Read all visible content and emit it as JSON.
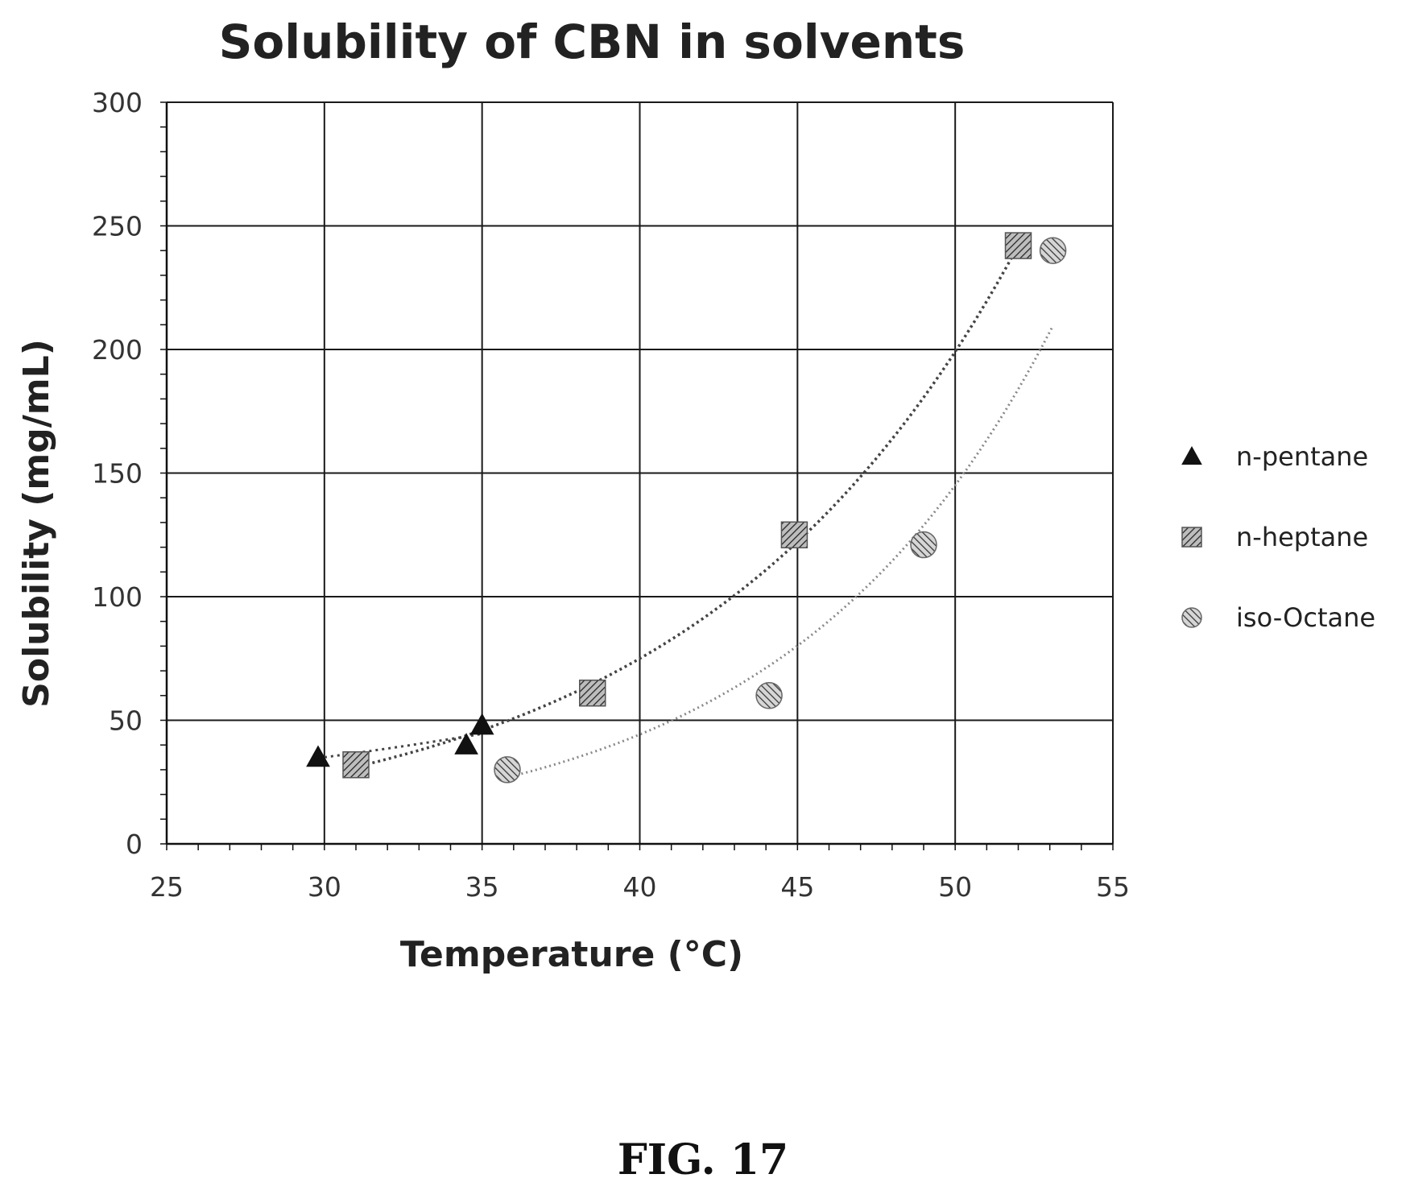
{
  "figure_label": "FIG. 17",
  "chart_data": {
    "type": "scatter",
    "title": "Solubility of CBN in solvents",
    "xlabel": "Temperature (°C)",
    "ylabel": "Solubility (mg/mL)",
    "xlim": [
      25,
      55
    ],
    "ylim": [
      0,
      300
    ],
    "xticks": [
      25,
      30,
      35,
      40,
      45,
      50,
      55
    ],
    "yticks": [
      0,
      50,
      100,
      150,
      200,
      250,
      300
    ],
    "grid": true,
    "legend_position": "right",
    "trendlines": "dotted exponential per series",
    "series": [
      {
        "name": "n-pentane",
        "marker": "triangle",
        "color": "#111111",
        "points": [
          [
            29.8,
            35
          ],
          [
            34.5,
            40
          ],
          [
            35.0,
            48
          ]
        ]
      },
      {
        "name": "n-heptane",
        "marker": "square-hatched",
        "color": "#333333",
        "points": [
          [
            31.0,
            32
          ],
          [
            38.5,
            61
          ],
          [
            44.9,
            125
          ],
          [
            52.0,
            242
          ]
        ]
      },
      {
        "name": "iso-Octane",
        "marker": "circle-hatched",
        "color": "#555555",
        "points": [
          [
            35.8,
            30
          ],
          [
            44.1,
            60
          ],
          [
            49.0,
            121
          ],
          [
            53.1,
            240
          ]
        ]
      }
    ]
  }
}
